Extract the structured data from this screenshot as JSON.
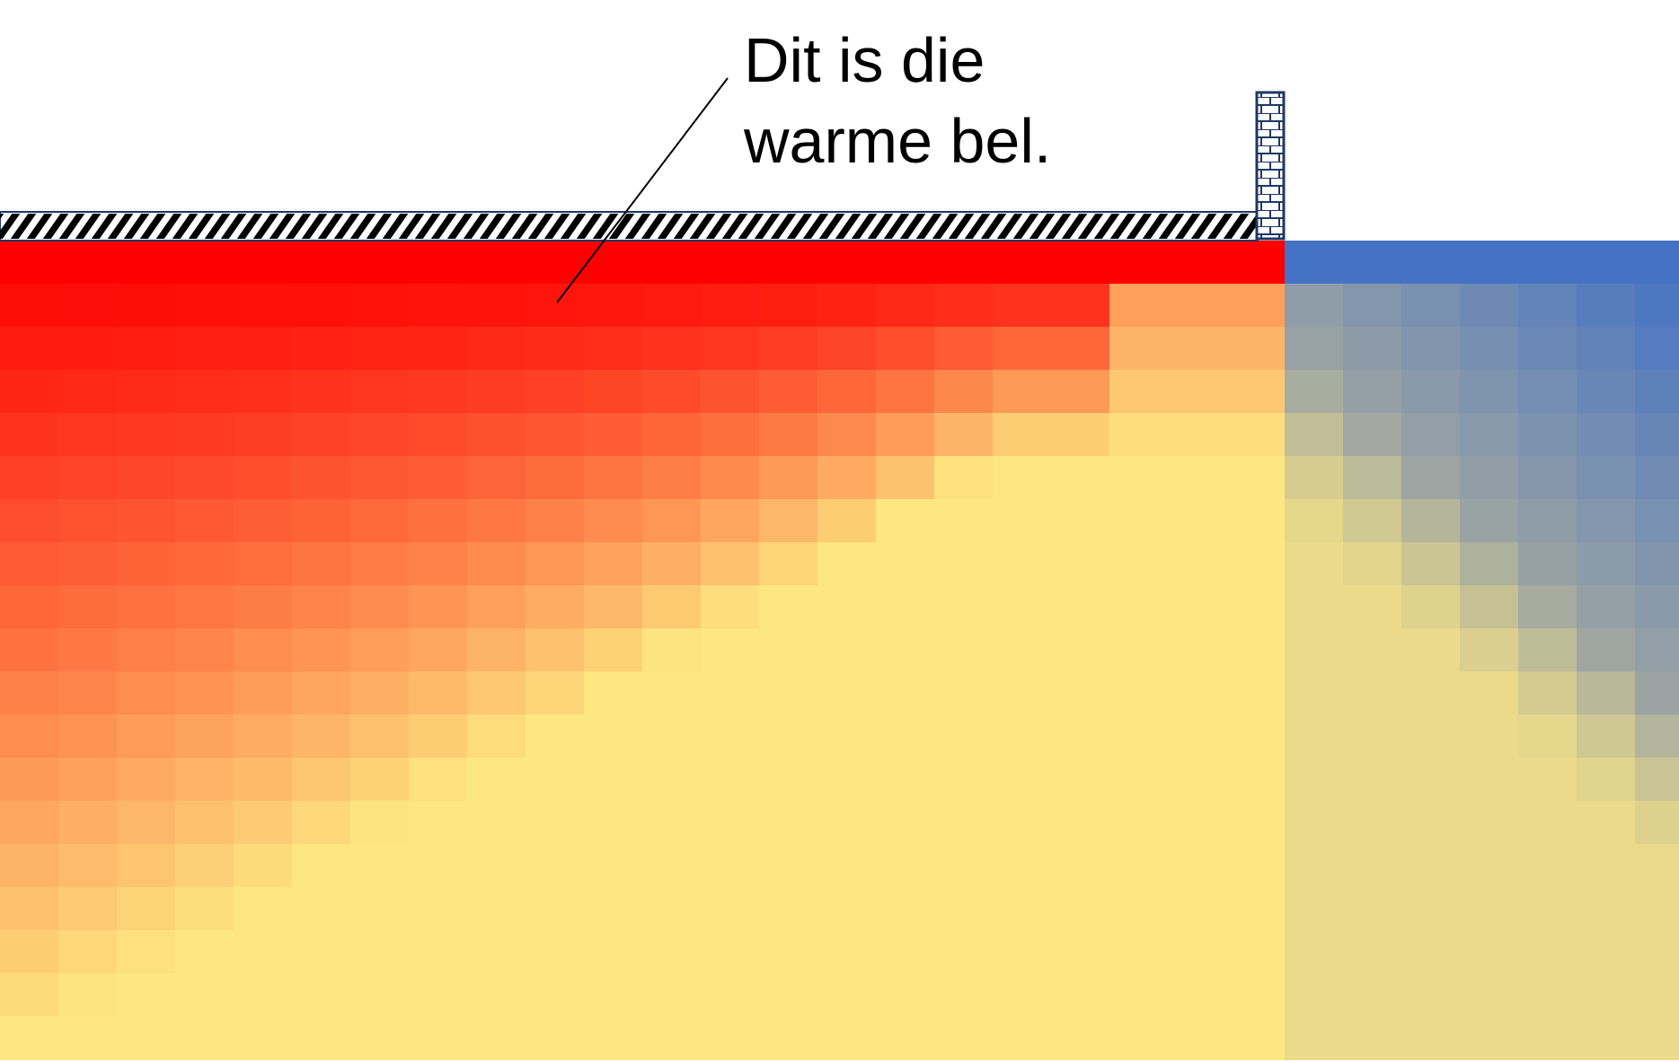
{
  "annotation": {
    "lines": [
      "Dit is die",
      "warme bel."
    ]
  },
  "grid": {
    "columns": 29,
    "rows": 19
  },
  "colors": {
    "hot": "#ff0000",
    "warm_yellow": "#fde783",
    "cold": "#4472c4",
    "mid_gray": "#9aa3a4",
    "insulation_stroke": "#000000",
    "wall_fill": "#ffffff",
    "wall_stroke": "#1f3864",
    "background": "#ffffff"
  },
  "regions": {
    "heated_columns": 22,
    "unheated_columns": 7
  }
}
